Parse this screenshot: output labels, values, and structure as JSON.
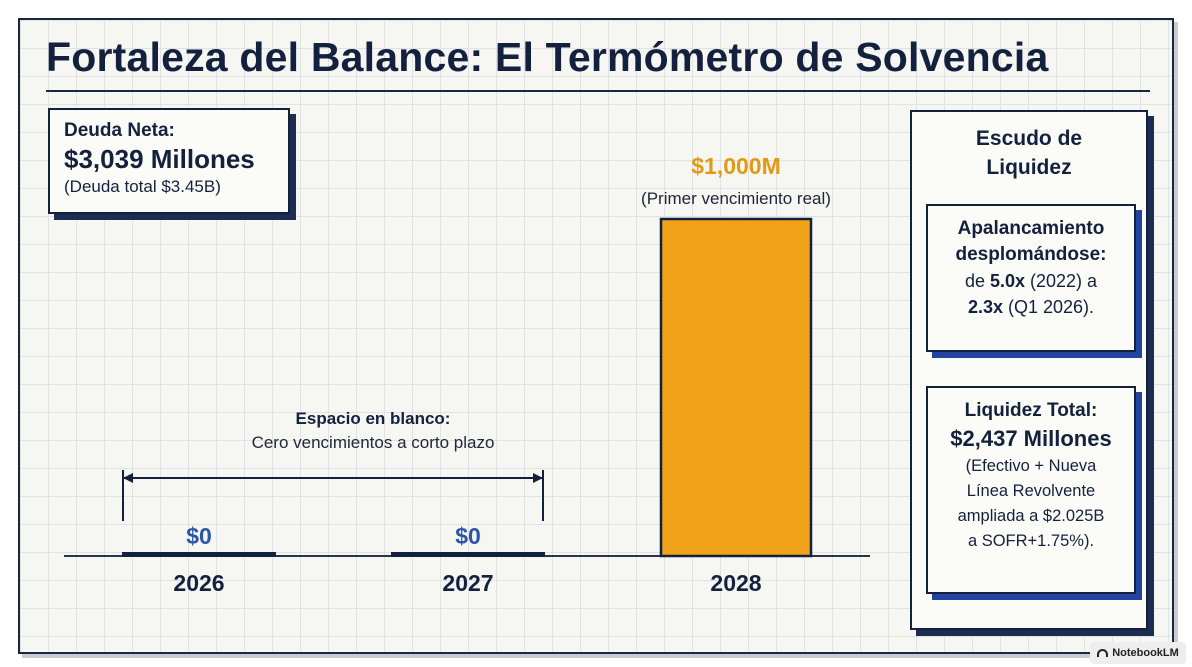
{
  "title": "Fortaleza del Balance: El Termómetro de Solvencia",
  "debt": {
    "label": "Deuda Neta:",
    "value": "$3,039 Millones",
    "sub": "(Deuda total $3.45B)"
  },
  "annotation": {
    "head": "Espacio en blanco:",
    "text": "Cero vencimientos a corto plazo"
  },
  "side_panel": {
    "title_line1": "Escudo de",
    "title_line2": "Liquidez",
    "leverage": {
      "head_line1": "Apalancamiento",
      "head_line2": "desplomándose:",
      "pre1": "de ",
      "from": "5.0x",
      "post1": " (2022) a",
      "to": "2.3x",
      "post2": " (Q1 2026)."
    },
    "liquidity": {
      "head": "Liquidez Total:",
      "value": "$2,437 Millones",
      "line1": "(Efectivo + Nueva",
      "line2": "Línea Revolvente",
      "line3": "ampliada a $2.025B",
      "line4": "a SOFR+1.75%)."
    }
  },
  "chart_data": {
    "type": "bar",
    "title": "Fortaleza del Balance: El Termómetro de Solvencia",
    "categories": [
      "2026",
      "2027",
      "2028"
    ],
    "values": [
      0,
      0,
      1000
    ],
    "value_labels": [
      "$0",
      "$0",
      "$1,000M"
    ],
    "bar_note": "(Primer vencimiento real)",
    "ylim": [
      0,
      1000
    ],
    "grid": true,
    "colors": {
      "bar": "#f0a318",
      "bar_edge": "#13213f",
      "zero_line": "#13213f",
      "zero_label": "#2a55a8",
      "highlight_label": "#e39a12"
    }
  },
  "watermark": "NotebookLM"
}
